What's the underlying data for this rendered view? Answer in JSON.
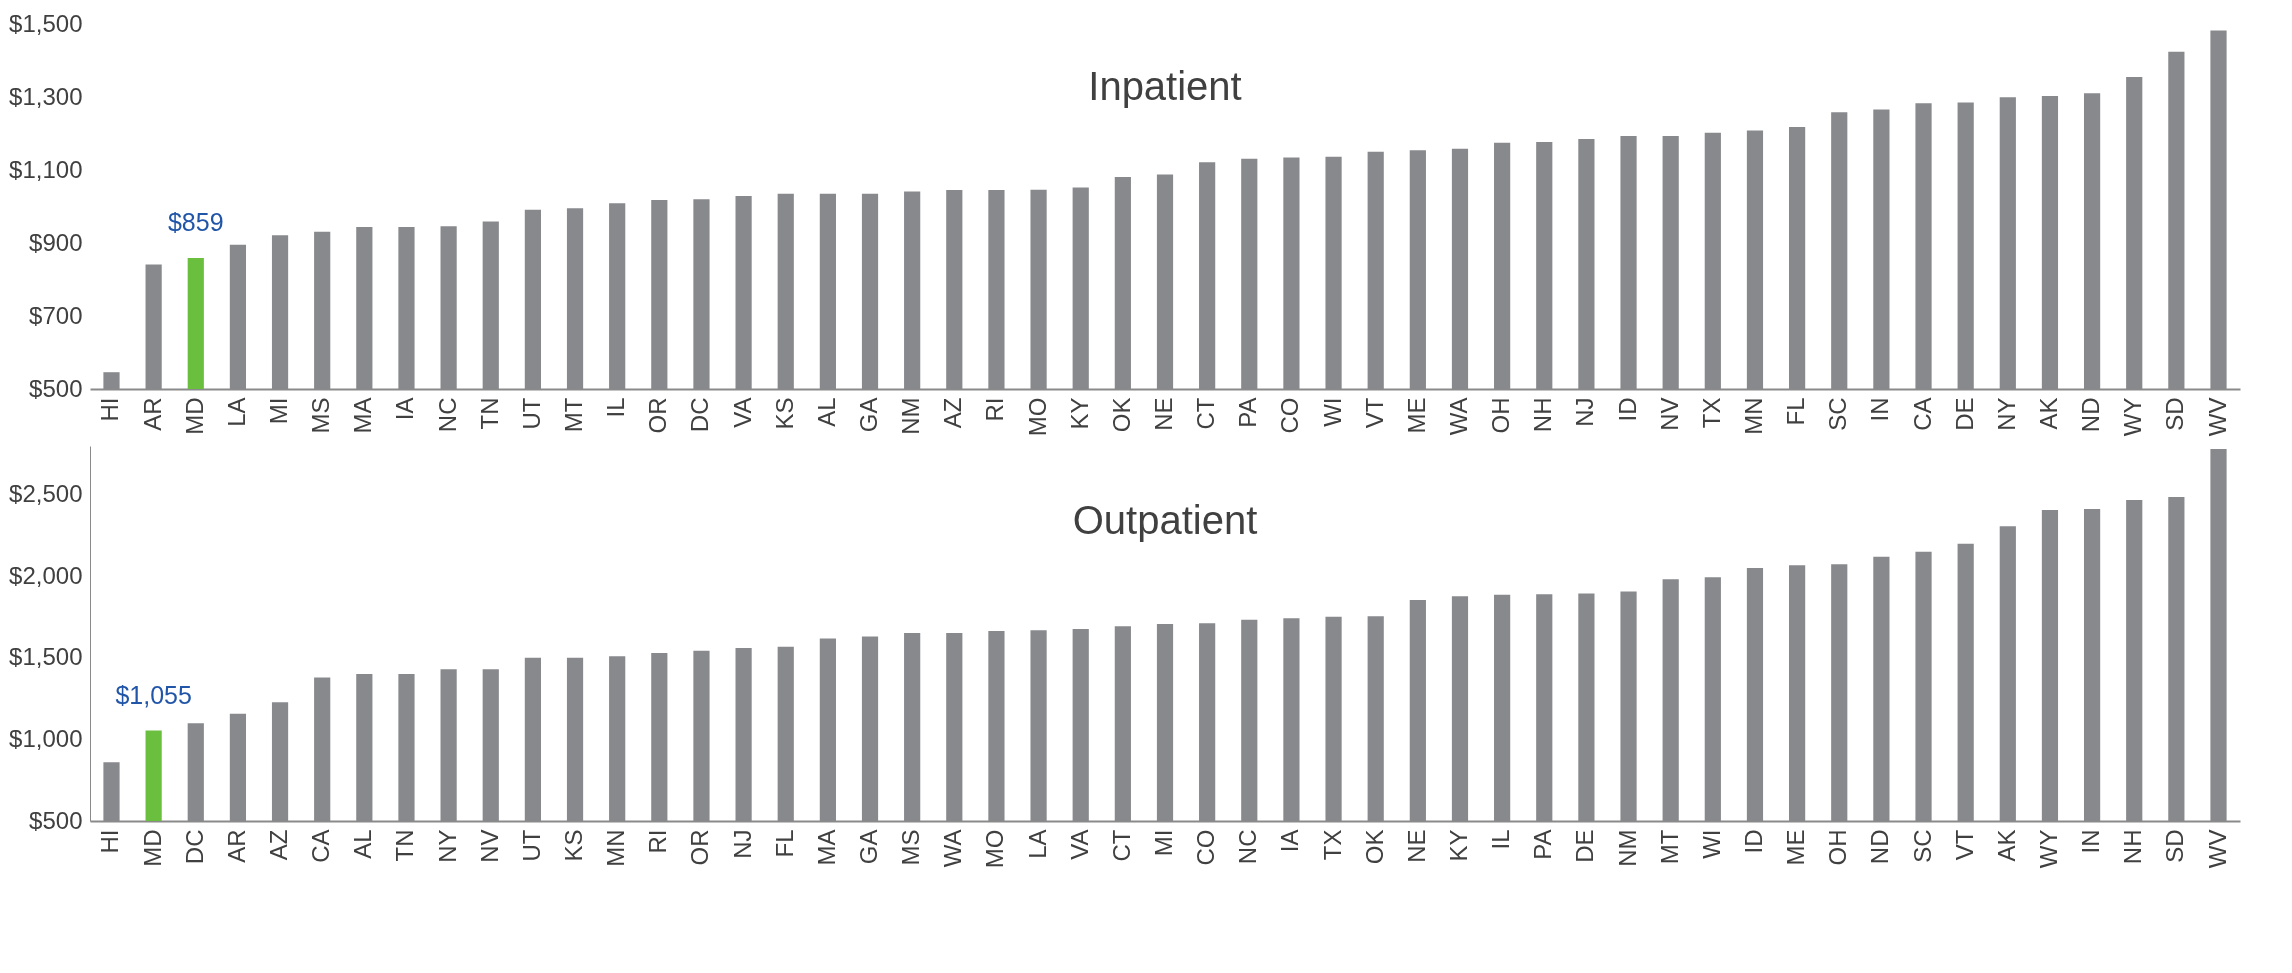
{
  "chart_data": [
    {
      "type": "bar",
      "title": "Inpatient",
      "categories": [
        "HI",
        "AR",
        "MD",
        "LA",
        "MI",
        "MS",
        "MA",
        "IA",
        "NC",
        "TN",
        "UT",
        "MT",
        "IL",
        "OR",
        "DC",
        "VA",
        "KS",
        "AL",
        "GA",
        "NM",
        "AZ",
        "RI",
        "MO",
        "KY",
        "OK",
        "NE",
        "CT",
        "PA",
        "CO",
        "WI",
        "VT",
        "ME",
        "WA",
        "OH",
        "NH",
        "NJ",
        "ID",
        "NV",
        "TX",
        "MN",
        "FL",
        "SC",
        "IN",
        "CA",
        "DE",
        "NY",
        "AK",
        "ND",
        "WY",
        "SD",
        "WV"
      ],
      "values": [
        546,
        841,
        859,
        895,
        921,
        931,
        944,
        944,
        946,
        959,
        991,
        995,
        1009,
        1018,
        1020,
        1029,
        1035,
        1035,
        1035,
        1041,
        1045,
        1045,
        1046,
        1052,
        1081,
        1088,
        1121,
        1131,
        1134,
        1136,
        1150,
        1154,
        1158,
        1175,
        1177,
        1185,
        1193,
        1193,
        1202,
        1208,
        1218,
        1258,
        1266,
        1283,
        1285,
        1299,
        1303,
        1310,
        1355,
        1424,
        1482
      ],
      "colors": [
        "#87898c",
        "#87898c",
        "#6abf3f",
        "#87898c",
        "#87898c",
        "#87898c",
        "#87898c",
        "#87898c",
        "#87898c",
        "#87898c",
        "#87898c",
        "#87898c",
        "#87898c",
        "#87898c",
        "#87898c",
        "#87898c",
        "#87898c",
        "#87898c",
        "#87898c",
        "#87898c",
        "#87898c",
        "#87898c",
        "#87898c",
        "#87898c",
        "#87898c",
        "#87898c",
        "#87898c",
        "#87898c",
        "#87898c",
        "#87898c",
        "#87898c",
        "#87898c",
        "#87898c",
        "#87898c",
        "#87898c",
        "#87898c",
        "#87898c",
        "#87898c",
        "#87898c",
        "#87898c",
        "#87898c",
        "#87898c",
        "#87898c",
        "#87898c",
        "#87898c",
        "#87898c",
        "#87898c",
        "#87898c",
        "#87898c",
        "#87898c",
        "#87898c"
      ],
      "ylim": [
        500,
        1500
      ],
      "yticks": [
        {
          "value": 500,
          "label": "$500"
        },
        {
          "value": 700,
          "label": "$700"
        },
        {
          "value": 900,
          "label": "$900"
        },
        {
          "value": 1100,
          "label": "$1,100"
        },
        {
          "value": 1300,
          "label": "$1,300"
        },
        {
          "value": 1500,
          "label": "$1,500"
        }
      ],
      "annotations": [
        {
          "text": "$859",
          "x": "MD",
          "y": 859
        }
      ]
    },
    {
      "type": "bar",
      "title": "Outpatient",
      "categories": [
        "HI",
        "MD",
        "DC",
        "AR",
        "AZ",
        "CA",
        "AL",
        "TN",
        "NY",
        "NV",
        "UT",
        "KS",
        "MN",
        "RI",
        "OR",
        "NJ",
        "FL",
        "MA",
        "GA",
        "MS",
        "WA",
        "MO",
        "LA",
        "VA",
        "CT",
        "MI",
        "CO",
        "NC",
        "IA",
        "TX",
        "OK",
        "NE",
        "KY",
        "IL",
        "PA",
        "DE",
        "NM",
        "MT",
        "WI",
        "ID",
        "ME",
        "OH",
        "ND",
        "SC",
        "VT",
        "AK",
        "WY",
        "IN",
        "NH",
        "SD",
        "WV"
      ],
      "values": [
        860,
        1055,
        1099,
        1158,
        1229,
        1380,
        1401,
        1401,
        1431,
        1431,
        1502,
        1502,
        1510,
        1531,
        1544,
        1561,
        1569,
        1619,
        1632,
        1653,
        1653,
        1665,
        1670,
        1678,
        1695,
        1708,
        1713,
        1735,
        1743,
        1752,
        1756,
        1856,
        1878,
        1887,
        1891,
        1895,
        1908,
        1982,
        1995,
        2052,
        2069,
        2074,
        2121,
        2152,
        2200,
        2308,
        2408,
        2413,
        2469,
        2487,
        2782
      ],
      "colors": [
        "#87898c",
        "#6abf3f",
        "#87898c",
        "#87898c",
        "#87898c",
        "#87898c",
        "#87898c",
        "#87898c",
        "#87898c",
        "#87898c",
        "#87898c",
        "#87898c",
        "#87898c",
        "#87898c",
        "#87898c",
        "#87898c",
        "#87898c",
        "#87898c",
        "#87898c",
        "#87898c",
        "#87898c",
        "#87898c",
        "#87898c",
        "#87898c",
        "#87898c",
        "#87898c",
        "#87898c",
        "#87898c",
        "#87898c",
        "#87898c",
        "#87898c",
        "#87898c",
        "#87898c",
        "#87898c",
        "#87898c",
        "#87898c",
        "#87898c",
        "#87898c",
        "#87898c",
        "#87898c",
        "#87898c",
        "#87898c",
        "#87898c",
        "#87898c",
        "#87898c",
        "#87898c",
        "#87898c",
        "#87898c",
        "#87898c",
        "#87898c",
        "#87898c"
      ],
      "ylim": [
        500,
        2800
      ],
      "yticks": [
        {
          "value": 500,
          "label": "$500"
        },
        {
          "value": 1000,
          "label": "$1,000"
        },
        {
          "value": 1500,
          "label": "$1,500"
        },
        {
          "value": 2000,
          "label": "$2,000"
        },
        {
          "value": 2500,
          "label": "$2,500"
        }
      ],
      "annotations": [
        {
          "text": "$1,055",
          "x": "MD",
          "y": 1055
        }
      ]
    }
  ]
}
